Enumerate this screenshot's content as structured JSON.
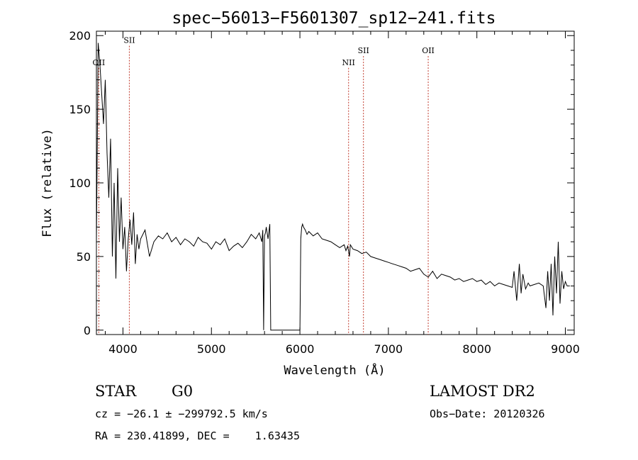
{
  "chart_data": {
    "type": "line",
    "title": "spec−56013−F5601307_sp12−241.fits",
    "xlabel": "Wavelength (Å)",
    "ylabel": "Flux (relative)",
    "xlim": [
      3700,
      9100
    ],
    "ylim": [
      -3,
      203
    ],
    "xticks": [
      4000,
      5000,
      6000,
      7000,
      8000,
      9000
    ],
    "yticks": [
      0,
      50,
      100,
      150,
      200
    ],
    "grid": false,
    "spectrum": {
      "line_color": "#000000",
      "x": [
        3700,
        3720,
        3740,
        3760,
        3780,
        3800,
        3820,
        3840,
        3860,
        3880,
        3900,
        3920,
        3940,
        3960,
        3980,
        4000,
        4020,
        4040,
        4060,
        4080,
        4100,
        4120,
        4140,
        4160,
        4180,
        4200,
        4250,
        4300,
        4350,
        4400,
        4450,
        4500,
        4550,
        4600,
        4650,
        4700,
        4750,
        4800,
        4850,
        4900,
        4950,
        5000,
        5050,
        5100,
        5150,
        5200,
        5250,
        5300,
        5350,
        5400,
        5450,
        5500,
        5540,
        5570,
        5580,
        5590,
        5600,
        5610,
        5620,
        5640,
        5660,
        5670,
        5680,
        5690,
        5700,
        5800,
        5900,
        5990,
        6000,
        6010,
        6020,
        6030,
        6040,
        6060,
        6080,
        6100,
        6150,
        6200,
        6250,
        6300,
        6350,
        6400,
        6450,
        6500,
        6520,
        6540,
        6560,
        6570,
        6600,
        6650,
        6700,
        6750,
        6800,
        6850,
        6900,
        6950,
        7000,
        7050,
        7100,
        7150,
        7200,
        7250,
        7300,
        7350,
        7400,
        7450,
        7500,
        7550,
        7600,
        7650,
        7700,
        7750,
        7800,
        7850,
        7900,
        7950,
        8000,
        8050,
        8100,
        8150,
        8200,
        8250,
        8300,
        8350,
        8400,
        8420,
        8450,
        8480,
        8500,
        8520,
        8550,
        8580,
        8600,
        8650,
        8700,
        8750,
        8780,
        8800,
        8820,
        8840,
        8860,
        8880,
        8900,
        8920,
        8940,
        8960,
        8980,
        9000,
        9020,
        9050
      ],
      "y": [
        60,
        195,
        180,
        160,
        140,
        170,
        120,
        90,
        130,
        50,
        100,
        35,
        110,
        60,
        90,
        55,
        70,
        40,
        62,
        75,
        58,
        80,
        45,
        65,
        55,
        62,
        68,
        50,
        60,
        64,
        62,
        66,
        60,
        63,
        58,
        62,
        60,
        57,
        63,
        60,
        59,
        55,
        60,
        58,
        62,
        54,
        57,
        59,
        56,
        60,
        65,
        62,
        66,
        60,
        68,
        0,
        64,
        66,
        70,
        62,
        72,
        0,
        0,
        0,
        0,
        0,
        0,
        0,
        0,
        62,
        70,
        72,
        70,
        68,
        65,
        67,
        64,
        66,
        62,
        61,
        60,
        58,
        56,
        58,
        54,
        57,
        50,
        58,
        55,
        54,
        52,
        53,
        50,
        49,
        48,
        47,
        46,
        45,
        44,
        43,
        42,
        40,
        41,
        42,
        38,
        36,
        40,
        35,
        38,
        37,
        36,
        34,
        35,
        33,
        34,
        35,
        33,
        34,
        31,
        33,
        30,
        32,
        31,
        30,
        29,
        40,
        20,
        45,
        25,
        38,
        28,
        32,
        30,
        31,
        32,
        30,
        15,
        40,
        20,
        45,
        10,
        50,
        25,
        60,
        18,
        40,
        28,
        33,
        30,
        30
      ]
    },
    "emission_lines": [
      {
        "label": "OII",
        "x": 3727,
        "label_y": 180
      },
      {
        "label": "SII",
        "x": 4072,
        "label_y": 195
      },
      {
        "label": "NII",
        "x": 6550,
        "label_y": 180
      },
      {
        "label": "SII",
        "x": 6718,
        "label_y": 188
      },
      {
        "label": "OII",
        "x": 7450,
        "label_y": 188
      }
    ],
    "line_marker_color": "#c0392b"
  },
  "info": {
    "object_class": "STAR",
    "subclass": "G0",
    "release": "LAMOST DR2",
    "velocity": "cz = −26.1 ± −299792.5 km/s",
    "obs_date": "Obs−Date: 20120326",
    "coordinates": "RA = 230.41899, DEC =    1.63435"
  }
}
